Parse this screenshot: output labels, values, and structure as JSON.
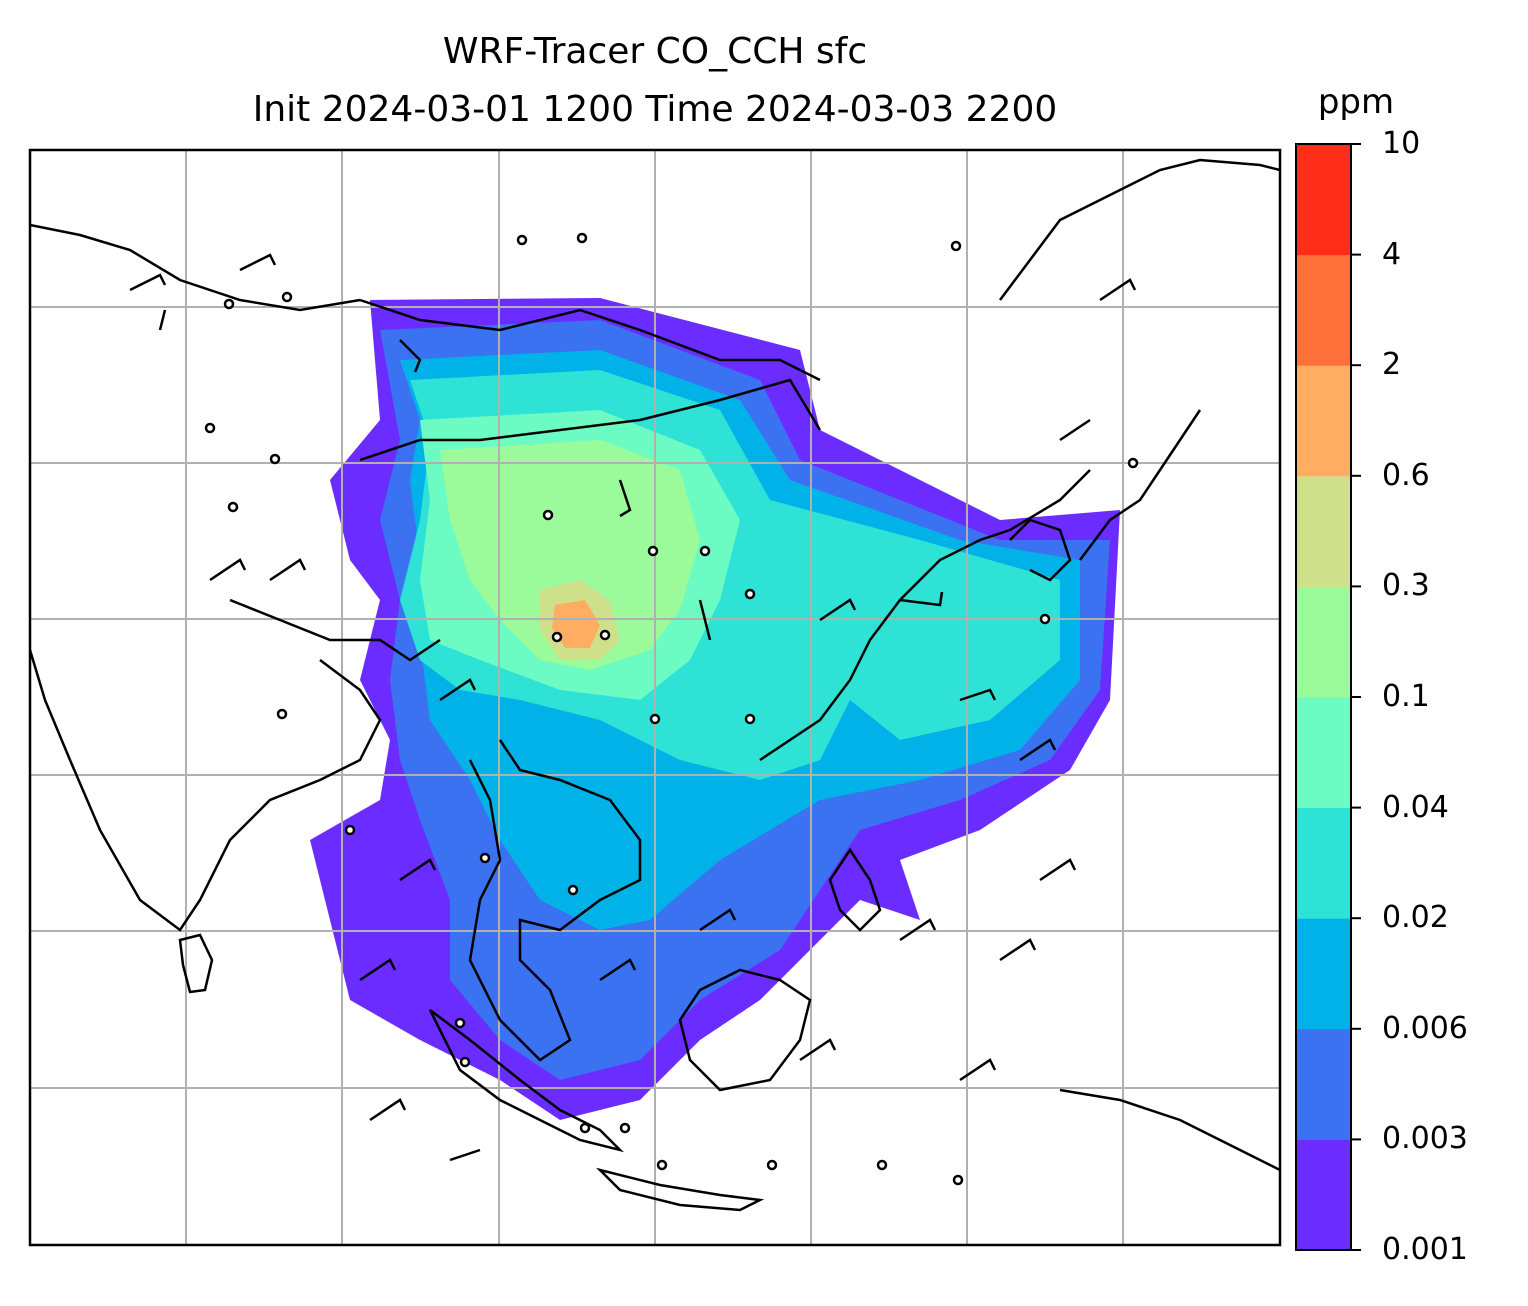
{
  "title": {
    "line1": "WRF-Tracer CO_CCH sfc",
    "line2": "Init 2024-03-01 1200 Time 2024-03-03 2200"
  },
  "colorbar": {
    "unit": "ppm",
    "levels": [
      "0.001",
      "0.003",
      "0.006",
      "0.02",
      "0.04",
      "0.1",
      "0.3",
      "0.6",
      "2",
      "4",
      "10"
    ],
    "colors": [
      "#6a2cff",
      "#3a72f2",
      "#00b2e8",
      "#2ee3d5",
      "#6bfbc3",
      "#9bfb9b",
      "#cfe08a",
      "#ffad62",
      "#ff6f3a",
      "#ff2d1a"
    ]
  },
  "map": {
    "type": "filled-contour-with-wind-barbs",
    "gridlines": true,
    "coastlines": true,
    "land_color": "#ffffff",
    "frame_color": "#000000",
    "grid_color": "#b0b0b0"
  }
}
